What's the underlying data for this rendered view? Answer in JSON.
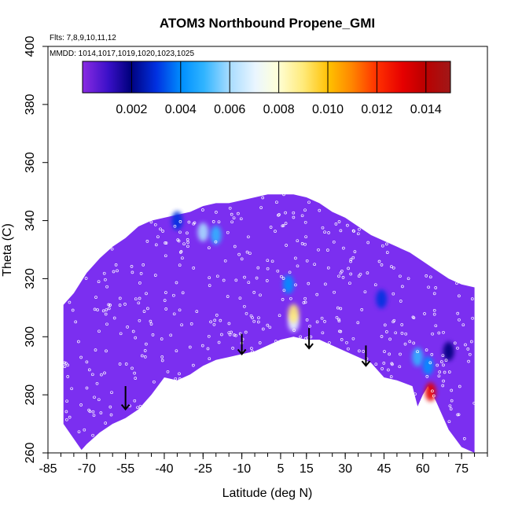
{
  "chart_data": {
    "type": "heatmap",
    "title": "ATOM3 Northbound Propene_GMI",
    "annotations": [
      "Flts: 7,8,9,10,11,12",
      "MMDD: 1014,1017,1019,1020,1023,1025"
    ],
    "xlabel": "Latitude (deg N)",
    "ylabel": "Theta (C)",
    "xlim": [
      -85,
      85
    ],
    "ylim": [
      260,
      400
    ],
    "x_ticks": [
      -85,
      -70,
      -55,
      -40,
      -25,
      -10,
      5,
      15,
      30,
      45,
      60,
      75
    ],
    "y_ticks": [
      260,
      280,
      300,
      320,
      340,
      360,
      380,
      400
    ],
    "colorbar": {
      "ticks": [
        "0.002",
        "0.004",
        "0.006",
        "0.008",
        "0.010",
        "0.012",
        "0.014"
      ],
      "range": [
        0,
        0.015
      ],
      "placement": "top-inside"
    },
    "field_boundary": {
      "upper": [
        [
          -79,
          311
        ],
        [
          -75,
          315
        ],
        [
          -70,
          322
        ],
        [
          -65,
          327
        ],
        [
          -60,
          331
        ],
        [
          -55,
          334
        ],
        [
          -50,
          338
        ],
        [
          -45,
          340
        ],
        [
          -40,
          341
        ],
        [
          -35,
          342
        ],
        [
          -30,
          343
        ],
        [
          -25,
          345
        ],
        [
          -20,
          346
        ],
        [
          -15,
          346
        ],
        [
          -10,
          347
        ],
        [
          -5,
          348
        ],
        [
          0,
          349
        ],
        [
          5,
          349
        ],
        [
          10,
          349
        ],
        [
          15,
          348
        ],
        [
          20,
          346
        ],
        [
          25,
          343
        ],
        [
          30,
          341
        ],
        [
          35,
          338
        ],
        [
          40,
          335
        ],
        [
          45,
          333
        ],
        [
          50,
          331
        ],
        [
          55,
          329
        ],
        [
          60,
          326
        ],
        [
          65,
          323
        ],
        [
          70,
          320
        ],
        [
          75,
          318
        ],
        [
          80,
          317
        ]
      ],
      "lower": [
        [
          80,
          260
        ],
        [
          75,
          262
        ],
        [
          70,
          268
        ],
        [
          65,
          278
        ],
        [
          62,
          283
        ],
        [
          60,
          280
        ],
        [
          58,
          276
        ],
        [
          56,
          283
        ],
        [
          50,
          285
        ],
        [
          45,
          286
        ],
        [
          40,
          291
        ],
        [
          35,
          293
        ],
        [
          30,
          295
        ],
        [
          25,
          297
        ],
        [
          20,
          299
        ],
        [
          15,
          299
        ],
        [
          10,
          300
        ],
        [
          5,
          299
        ],
        [
          0,
          297
        ],
        [
          -5,
          295
        ],
        [
          -10,
          294
        ],
        [
          -15,
          293
        ],
        [
          -20,
          292
        ],
        [
          -25,
          290
        ],
        [
          -30,
          287
        ],
        [
          -35,
          285
        ],
        [
          -40,
          286
        ],
        [
          -45,
          280
        ],
        [
          -50,
          275
        ],
        [
          -55,
          272
        ],
        [
          -60,
          270
        ],
        [
          -65,
          267
        ],
        [
          -70,
          263
        ],
        [
          -72,
          261
        ],
        [
          -79,
          270
        ]
      ]
    },
    "hotspots": [
      {
        "lat": -25,
        "theta": 336,
        "value": 0.0065
      },
      {
        "lat": -20,
        "theta": 335,
        "value": 0.005
      },
      {
        "lat": -35,
        "theta": 340,
        "value": 0.003
      },
      {
        "lat": 8,
        "theta": 318,
        "value": 0.004
      },
      {
        "lat": 10,
        "theta": 305,
        "value": 0.0075
      },
      {
        "lat": 10,
        "theta": 308,
        "value": 0.009
      },
      {
        "lat": 44,
        "theta": 313,
        "value": 0.003
      },
      {
        "lat": 58,
        "theta": 293,
        "value": 0.005
      },
      {
        "lat": 62,
        "theta": 290,
        "value": 0.004
      },
      {
        "lat": 63,
        "theta": 281,
        "value": 0.013
      },
      {
        "lat": 70,
        "theta": 295,
        "value": 0.0025
      }
    ],
    "arrows": [
      {
        "lat": -55,
        "theta_from": 283,
        "theta_to": 275
      },
      {
        "lat": -10,
        "theta_from": 301,
        "theta_to": 294
      },
      {
        "lat": 16,
        "theta_from": 303,
        "theta_to": 296
      },
      {
        "lat": 38,
        "theta_from": 297,
        "theta_to": 290
      }
    ]
  }
}
